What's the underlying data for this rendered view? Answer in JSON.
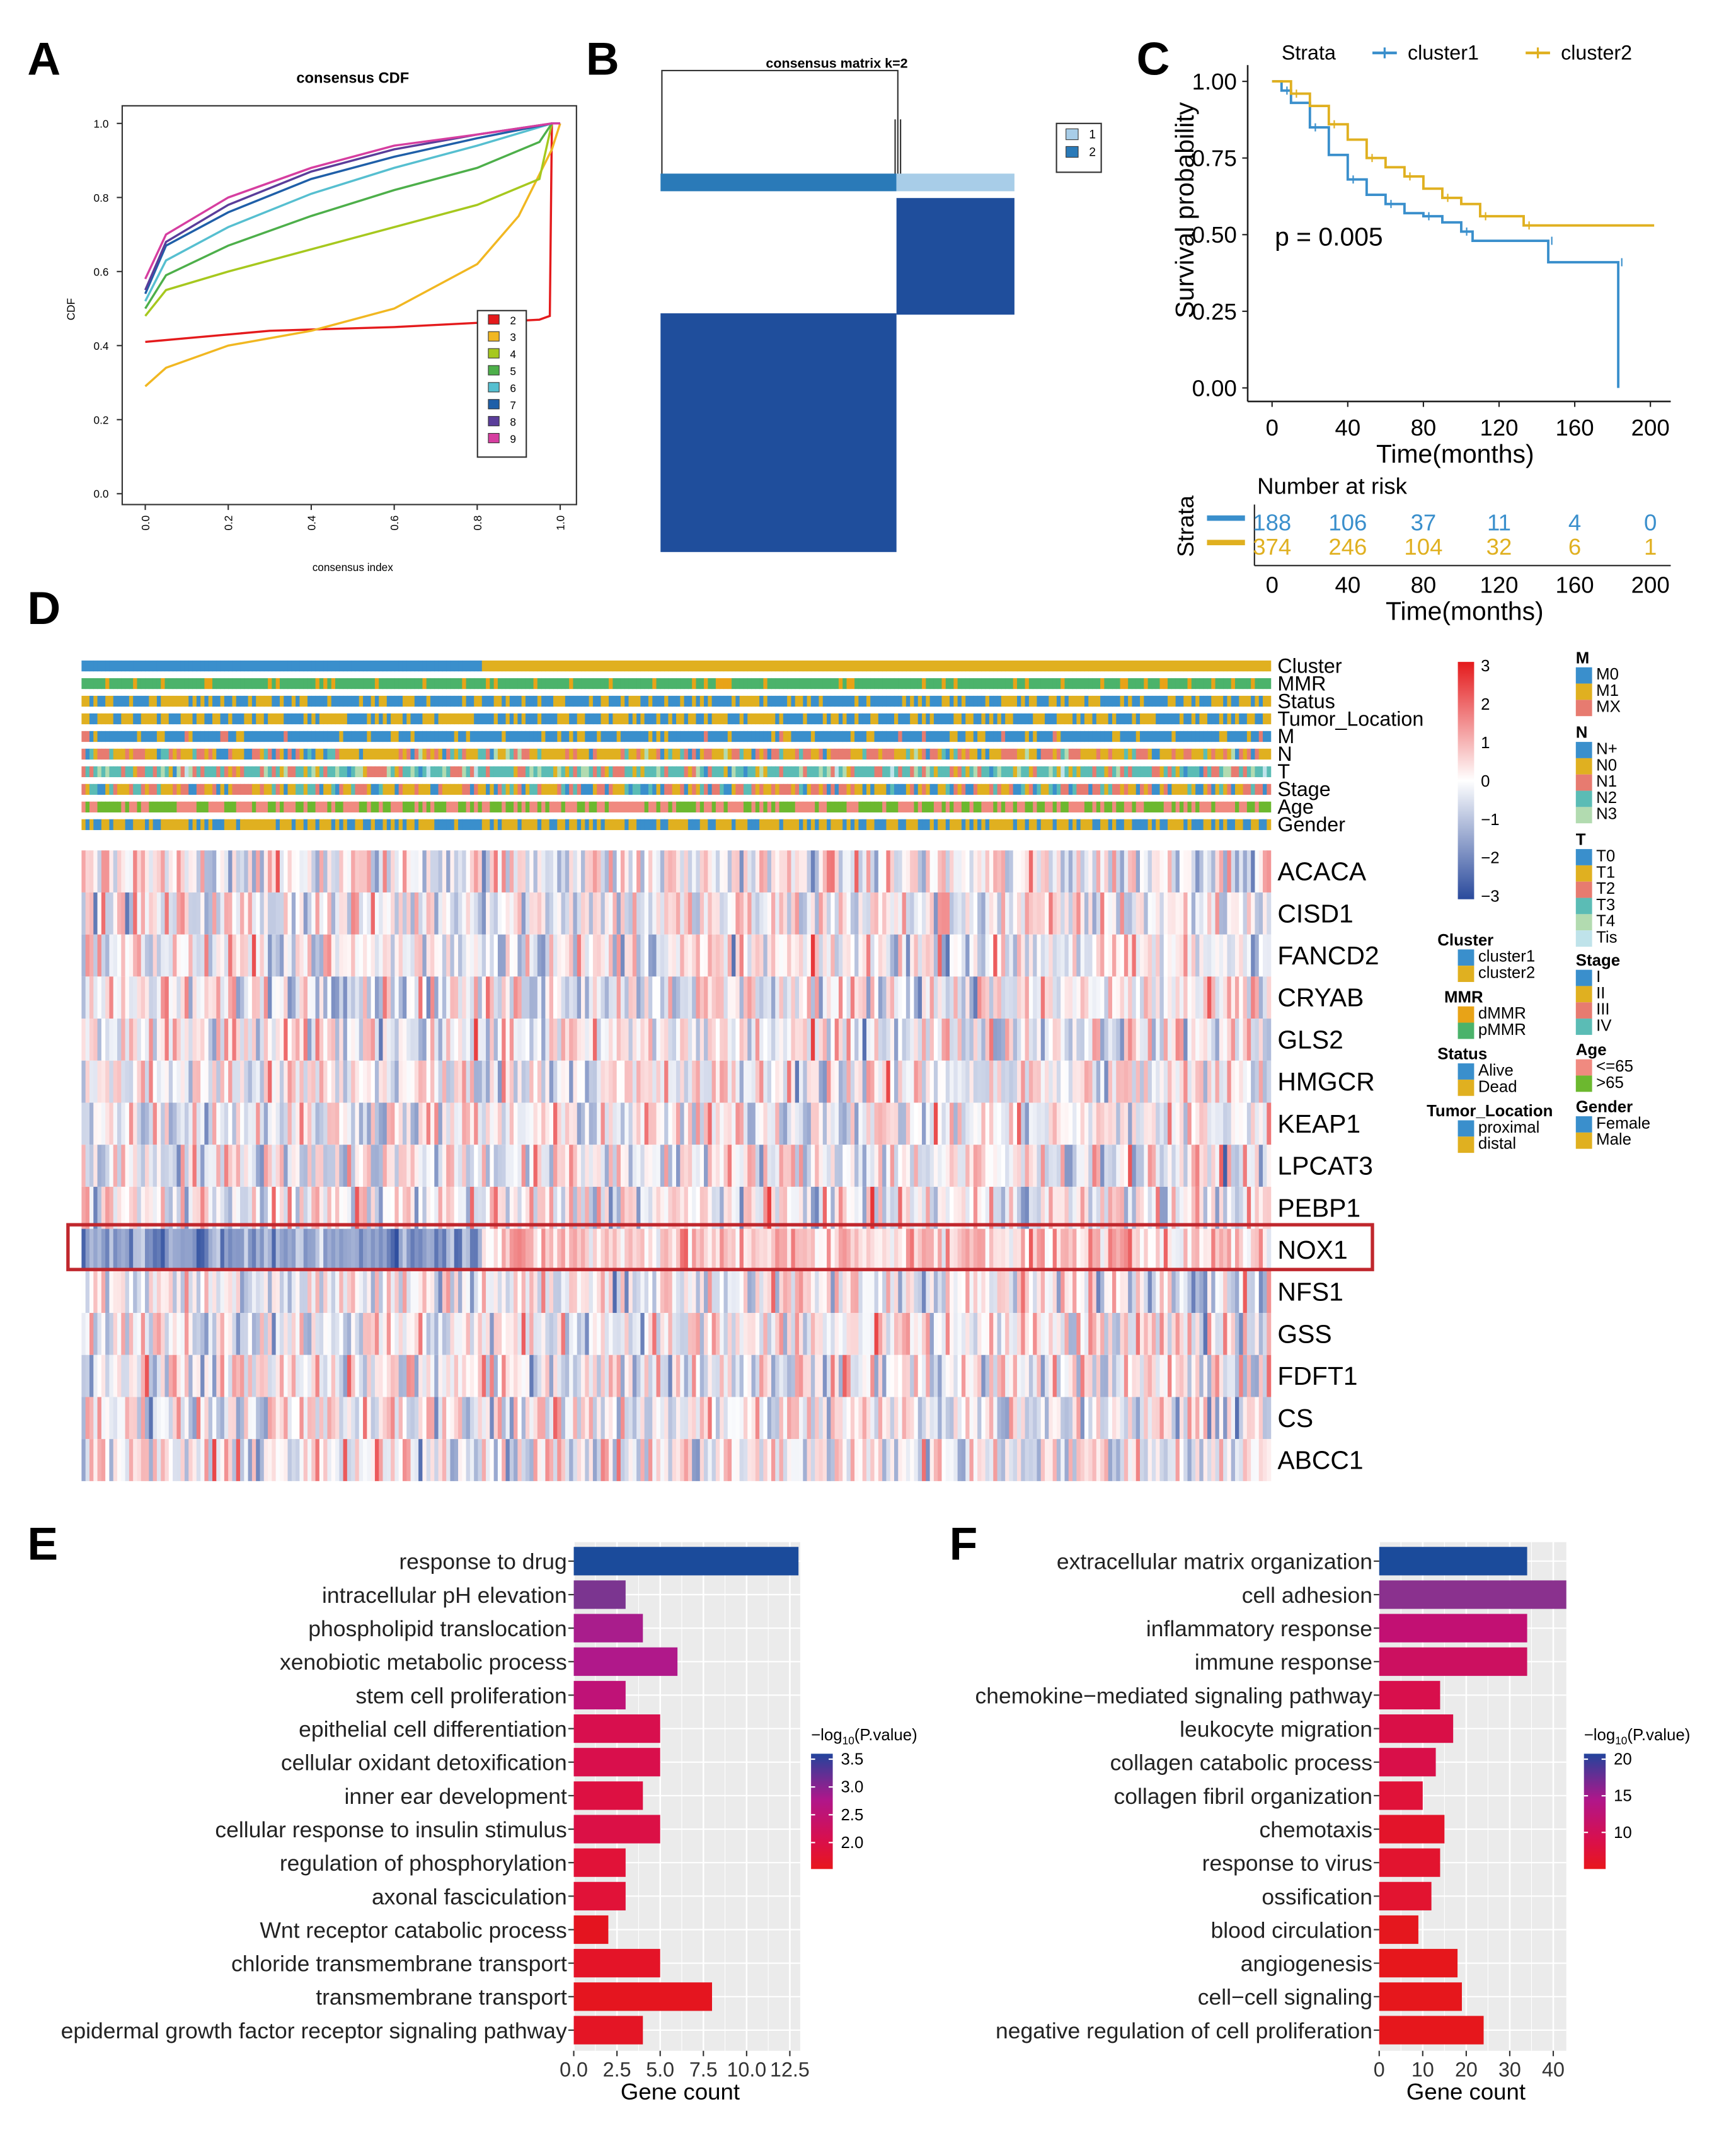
{
  "panel_letters": [
    "A",
    "B",
    "C",
    "D",
    "E",
    "F"
  ],
  "chart_data": [
    {
      "panel": "A",
      "type": "line",
      "title": "consensus CDF",
      "xlabel": "consensus index",
      "ylabel": "CDF",
      "xlim": [
        0,
        1
      ],
      "ylim": [
        0,
        1
      ],
      "xticks": [
        "0.0",
        "0.2",
        "0.4",
        "0.6",
        "0.8",
        "1.0"
      ],
      "yticks": [
        "0.0",
        "0.2",
        "0.4",
        "0.6",
        "0.8",
        "1.0"
      ],
      "legend_position": "right",
      "series": [
        {
          "name": "2",
          "color": "#e41a1c",
          "points": [
            [
              0,
              0.41
            ],
            [
              0.1,
              0.42
            ],
            [
              0.3,
              0.44
            ],
            [
              0.6,
              0.45
            ],
            [
              0.95,
              0.47
            ],
            [
              0.975,
              0.48
            ],
            [
              0.98,
              1.0
            ],
            [
              1,
              1
            ]
          ]
        },
        {
          "name": "3",
          "color": "#f1b721",
          "points": [
            [
              0,
              0.29
            ],
            [
              0.05,
              0.34
            ],
            [
              0.2,
              0.4
            ],
            [
              0.4,
              0.44
            ],
            [
              0.6,
              0.5
            ],
            [
              0.8,
              0.62
            ],
            [
              0.9,
              0.75
            ],
            [
              0.98,
              0.93
            ],
            [
              1,
              1
            ]
          ]
        },
        {
          "name": "4",
          "color": "#a6c81e",
          "points": [
            [
              0,
              0.48
            ],
            [
              0.05,
              0.55
            ],
            [
              0.2,
              0.6
            ],
            [
              0.4,
              0.66
            ],
            [
              0.6,
              0.72
            ],
            [
              0.8,
              0.78
            ],
            [
              0.95,
              0.85
            ],
            [
              0.98,
              1
            ],
            [
              1,
              1
            ]
          ]
        },
        {
          "name": "5",
          "color": "#4daf4a",
          "points": [
            [
              0,
              0.5
            ],
            [
              0.05,
              0.59
            ],
            [
              0.2,
              0.67
            ],
            [
              0.4,
              0.75
            ],
            [
              0.6,
              0.82
            ],
            [
              0.8,
              0.88
            ],
            [
              0.95,
              0.95
            ],
            [
              0.98,
              1
            ],
            [
              1,
              1
            ]
          ]
        },
        {
          "name": "6",
          "color": "#56bfd0",
          "points": [
            [
              0,
              0.52
            ],
            [
              0.05,
              0.63
            ],
            [
              0.2,
              0.72
            ],
            [
              0.4,
              0.81
            ],
            [
              0.6,
              0.88
            ],
            [
              0.8,
              0.94
            ],
            [
              0.98,
              1
            ],
            [
              1,
              1
            ]
          ]
        },
        {
          "name": "7",
          "color": "#1f5fa8",
          "points": [
            [
              0,
              0.54
            ],
            [
              0.05,
              0.67
            ],
            [
              0.2,
              0.76
            ],
            [
              0.4,
              0.85
            ],
            [
              0.6,
              0.91
            ],
            [
              0.8,
              0.96
            ],
            [
              0.98,
              1
            ],
            [
              1,
              1
            ]
          ]
        },
        {
          "name": "8",
          "color": "#5a3d9a",
          "points": [
            [
              0,
              0.55
            ],
            [
              0.05,
              0.68
            ],
            [
              0.2,
              0.78
            ],
            [
              0.4,
              0.87
            ],
            [
              0.6,
              0.93
            ],
            [
              0.8,
              0.97
            ],
            [
              0.98,
              1
            ],
            [
              1,
              1
            ]
          ]
        },
        {
          "name": "9",
          "color": "#d63ea0",
          "points": [
            [
              0,
              0.58
            ],
            [
              0.05,
              0.7
            ],
            [
              0.2,
              0.8
            ],
            [
              0.4,
              0.88
            ],
            [
              0.6,
              0.94
            ],
            [
              0.8,
              0.97
            ],
            [
              0.98,
              1
            ],
            [
              1,
              1
            ]
          ]
        }
      ]
    },
    {
      "panel": "B",
      "type": "heatmap",
      "title": "consensus matrix k=2",
      "legend": [
        {
          "label": "1",
          "color": "#a8cde8"
        },
        {
          "label": "2",
          "color": "#2a7ab8"
        }
      ],
      "clusters": [
        {
          "label": "2",
          "fraction": 0.665
        },
        {
          "label": "1",
          "fraction": 0.335
        }
      ],
      "block_color": "#1f4e9c"
    },
    {
      "panel": "C",
      "type": "line",
      "legend_title": "Strata",
      "xlabel": "Time(months)",
      "ylabel": "Survival probability",
      "xlim": [
        0,
        200
      ],
      "ylim": [
        0,
        1
      ],
      "xticks": [
        "0",
        "40",
        "80",
        "120",
        "160",
        "200"
      ],
      "yticks": [
        "0.00",
        "0.25",
        "0.50",
        "0.75",
        "1.00"
      ],
      "annotation": "p = 0.005",
      "series": [
        {
          "name": "cluster1",
          "color": "#3a8fcc",
          "points": [
            [
              0,
              1
            ],
            [
              5,
              0.97
            ],
            [
              10,
              0.93
            ],
            [
              20,
              0.85
            ],
            [
              30,
              0.76
            ],
            [
              40,
              0.68
            ],
            [
              50,
              0.63
            ],
            [
              60,
              0.6
            ],
            [
              70,
              0.57
            ],
            [
              80,
              0.56
            ],
            [
              90,
              0.54
            ],
            [
              100,
              0.51
            ],
            [
              106,
              0.48
            ],
            [
              145,
              0.48
            ],
            [
              146,
              0.41
            ],
            [
              182,
              0.41
            ],
            [
              183,
              0
            ]
          ]
        },
        {
          "name": "cluster2",
          "color": "#e0b020",
          "points": [
            [
              0,
              1
            ],
            [
              10,
              0.96
            ],
            [
              20,
              0.92
            ],
            [
              30,
              0.86
            ],
            [
              40,
              0.81
            ],
            [
              50,
              0.75
            ],
            [
              60,
              0.72
            ],
            [
              70,
              0.69
            ],
            [
              80,
              0.65
            ],
            [
              90,
              0.62
            ],
            [
              100,
              0.6
            ],
            [
              110,
              0.56
            ],
            [
              130,
              0.56
            ],
            [
              133,
              0.53
            ],
            [
              202,
              0.53
            ]
          ]
        }
      ],
      "risk_table": {
        "title": "Number at risk",
        "ylabel": "Strata",
        "times": [
          "0",
          "40",
          "80",
          "120",
          "160",
          "200"
        ],
        "rows": [
          {
            "name": "cluster1",
            "color": "#3a8fcc",
            "values": [
              "188",
              "106",
              "37",
              "11",
              "4",
              "0"
            ]
          },
          {
            "name": "cluster2",
            "color": "#e0b020",
            "values": [
              "374",
              "246",
              "104",
              "32",
              "6",
              "1"
            ]
          }
        ]
      }
    },
    {
      "panel": "D",
      "type": "heatmap",
      "annotation_tracks": [
        "Cluster",
        "MMR",
        "Status",
        "Tumor_Location",
        "M",
        "N",
        "T",
        "Stage",
        "Age",
        "Gender"
      ],
      "genes": [
        "ACACA",
        "CISD1",
        "FANCD2",
        "CRYAB",
        "GLS2",
        "HMGCR",
        "KEAP1",
        "LPCAT3",
        "PEBP1",
        "NOX1",
        "NFS1",
        "GSS",
        "FDFT1",
        "CS",
        "ABCC1"
      ],
      "highlighted_gene": "NOX1",
      "highlight_color": "#c0272d",
      "cluster1_fraction": 0.335,
      "color_scale": {
        "min": -3,
        "max": 3,
        "low": "#2a4a9c",
        "mid": "#ffffff",
        "high": "#e41a1c",
        "ticks": [
          "3",
          "2",
          "1",
          "0",
          "−1",
          "−2",
          "−3"
        ]
      },
      "legends_left": [
        {
          "title": "Cluster",
          "items": [
            [
              "cluster1",
              "#3a8fcc"
            ],
            [
              "cluster2",
              "#e0b020"
            ]
          ]
        },
        {
          "title": "MMR",
          "items": [
            [
              "dMMR",
              "#e8a317"
            ],
            [
              "pMMR",
              "#4bb36b"
            ]
          ]
        },
        {
          "title": "Status",
          "items": [
            [
              "Alive",
              "#3a8fcc"
            ],
            [
              "Dead",
              "#e0b020"
            ]
          ]
        },
        {
          "title": "Tumor_Location",
          "items": [
            [
              "proximal",
              "#3a8fcc"
            ],
            [
              "distal",
              "#e0b020"
            ]
          ]
        }
      ],
      "legends_right": [
        {
          "title": "M",
          "items": [
            [
              "M0",
              "#3a8fcc"
            ],
            [
              "M1",
              "#e0b020"
            ],
            [
              "MX",
              "#e77b70"
            ]
          ]
        },
        {
          "title": "N",
          "items": [
            [
              "N+",
              "#3a8fcc"
            ],
            [
              "N0",
              "#e0b020"
            ],
            [
              "N1",
              "#e77b70"
            ],
            [
              "N2",
              "#5bbcb5"
            ],
            [
              "N3",
              "#b2dbb0"
            ]
          ]
        },
        {
          "title": "T",
          "items": [
            [
              "T0",
              "#3a8fcc"
            ],
            [
              "T1",
              "#e0b020"
            ],
            [
              "T2",
              "#e77b70"
            ],
            [
              "T3",
              "#5bbcb5"
            ],
            [
              "T4",
              "#b2dbb0"
            ],
            [
              "Tis",
              "#bfe3ea"
            ]
          ]
        },
        {
          "title": "Stage",
          "items": [
            [
              "I",
              "#3a8fcc"
            ],
            [
              "II",
              "#e0b020"
            ],
            [
              "III",
              "#e77b70"
            ],
            [
              "IV",
              "#5bbcb5"
            ]
          ]
        },
        {
          "title": "Age",
          "items": [
            [
              "<=65",
              "#f08a80"
            ],
            [
              ">65",
              "#6cb82f"
            ]
          ]
        },
        {
          "title": "Gender",
          "items": [
            [
              "Female",
              "#3a8fcc"
            ],
            [
              "Male",
              "#e0b020"
            ]
          ]
        }
      ]
    },
    {
      "panel": "E",
      "type": "bar",
      "orientation": "horizontal",
      "xlabel": "Gene count",
      "xlim": [
        0,
        13.1
      ],
      "xticks": [
        "0.0",
        "2.5",
        "5.0",
        "7.5",
        "10.0",
        "12.5"
      ],
      "legend_title": "−log10(P.value)",
      "legend_ticks": [
        "3.5",
        "3.0",
        "2.5",
        "2.0"
      ],
      "categories": [
        "response to drug",
        "intracellular pH elevation",
        "phospholipid translocation",
        "xenobiotic metabolic process",
        "stem cell proliferation",
        "epithelial cell differentiation",
        "cellular oxidant detoxification",
        "inner ear development",
        "cellular response to insulin stimulus",
        "regulation of phosphorylation",
        "axonal fasciculation",
        "Wnt receptor catabolic process",
        "chloride transmembrane transport",
        "transmembrane transport",
        "epidermal growth factor receptor signaling pathway"
      ],
      "values": [
        13,
        3,
        4,
        6,
        3,
        5,
        5,
        4,
        5,
        3,
        3,
        2,
        5,
        8,
        4
      ],
      "neg_log10_p": [
        3.6,
        3.0,
        2.6,
        2.5,
        2.4,
        2.1,
        2.1,
        2.0,
        2.0,
        1.9,
        1.9,
        1.8,
        1.8,
        1.8,
        1.8
      ],
      "colors": [
        "#1b4b9b",
        "#7b3590",
        "#a91d8c",
        "#b0188a",
        "#bf1277",
        "#d80f4e",
        "#d90f4c",
        "#dd1042",
        "#db1046",
        "#e11238",
        "#e11238",
        "#e4141f",
        "#e41428",
        "#e5151f",
        "#e41525"
      ]
    },
    {
      "panel": "F",
      "type": "bar",
      "orientation": "horizontal",
      "xlabel": "Gene count",
      "xlim": [
        0,
        43
      ],
      "xticks": [
        "0",
        "10",
        "20",
        "30",
        "40"
      ],
      "legend_title": "−log10(P.value)",
      "legend_ticks": [
        "20",
        "15",
        "10"
      ],
      "categories": [
        "extracellular matrix organization",
        "cell adhesion",
        "inflammatory response",
        "immune response",
        "chemokine−mediated signaling pathway",
        "leukocyte migration",
        "collagen catabolic process",
        "collagen fibril organization",
        "chemotaxis",
        "response to virus",
        "ossification",
        "blood circulation",
        "angiogenesis",
        "cell−cell signaling",
        "negative regulation of cell proliferation"
      ],
      "values": [
        34,
        43,
        34,
        34,
        14,
        17,
        13,
        10,
        15,
        14,
        12,
        9,
        18,
        19,
        24
      ],
      "neg_log10_p": [
        20,
        16,
        12,
        11,
        9,
        9,
        9,
        8,
        7,
        7,
        7,
        6,
        6,
        6,
        6
      ],
      "colors": [
        "#1b4b9b",
        "#8a318e",
        "#c21073",
        "#cc1060",
        "#d80f4c",
        "#d90f47",
        "#d90f49",
        "#e01239",
        "#e3142a",
        "#e2142f",
        "#e21430",
        "#e5171e",
        "#e6171c",
        "#e6171c",
        "#e6171c"
      ]
    }
  ]
}
